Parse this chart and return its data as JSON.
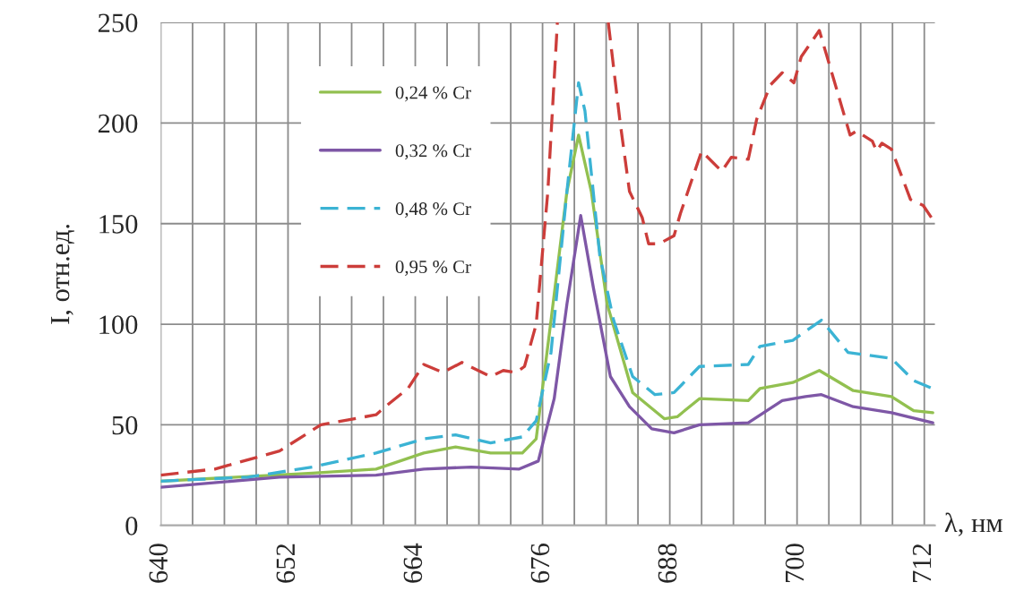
{
  "chart_data": {
    "type": "line",
    "xlabel": "λ, нм",
    "ylabel": "I, отн.ед.",
    "xlim": [
      640,
      713
    ],
    "ylim": [
      0,
      250
    ],
    "xticks": [
      640,
      {
        "value": 643,
        "label": null
      },
      {
        "value": 646,
        "label": null
      },
      {
        "value": 649,
        "label": null
      },
      652,
      {
        "value": 655,
        "label": null
      },
      {
        "value": 658,
        "label": null
      },
      {
        "value": 661,
        "label": null
      },
      664,
      {
        "value": 667,
        "label": null
      },
      {
        "value": 670,
        "label": null
      },
      {
        "value": 673,
        "label": null
      },
      676,
      {
        "value": 679,
        "label": null
      },
      {
        "value": 682,
        "label": null
      },
      {
        "value": 685,
        "label": null
      },
      688,
      {
        "value": 691,
        "label": null
      },
      {
        "value": 694,
        "label": null
      },
      {
        "value": 697,
        "label": null
      },
      700,
      {
        "value": 703,
        "label": null
      },
      {
        "value": 706,
        "label": null
      },
      {
        "value": 709,
        "label": null
      },
      712
    ],
    "yticks": [
      0,
      50,
      100,
      150,
      200,
      250
    ],
    "grid": true,
    "legend": "top left",
    "series": [
      {
        "name": "0,24 % Cr",
        "color": "#92c050",
        "line_style": "solid",
        "x": [
          640,
          654.3,
          660.3,
          664.8,
          667.8,
          671.1,
          674.1,
          675.4,
          676.8,
          678.3,
          679.4,
          680.6,
          682.1,
          684.5,
          687.5,
          688.7,
          690.8,
          695.4,
          696.5,
          699.6,
          702.1,
          705.3,
          708.9,
          711.0,
          712.8
        ],
        "values": [
          22,
          26,
          28,
          36,
          39,
          36,
          36,
          43,
          102,
          166,
          194,
          166,
          110,
          66,
          53,
          54,
          63,
          62,
          68,
          71,
          77,
          67,
          64,
          57,
          56
        ]
      },
      {
        "name": "0,32 % Cr",
        "color": "#7e57a6",
        "line_style": "solid",
        "x": [
          640,
          651.2,
          660.3,
          664.8,
          669.3,
          673.8,
          675.6,
          677.1,
          678.3,
          679.6,
          680.8,
          682.4,
          684.2,
          686.3,
          688.4,
          690.8,
          695.4,
          698.6,
          700.8,
          702.3,
          705.3,
          708.9,
          712.8
        ],
        "values": [
          19,
          24,
          25,
          28,
          29,
          28,
          32,
          63,
          110,
          154,
          118,
          74,
          59,
          48,
          46,
          50,
          51,
          62,
          64,
          65,
          59,
          56,
          51
        ]
      },
      {
        "name": "0,48 % Cr",
        "color": "#3bb3d4",
        "line_style": "dashed",
        "x": [
          640,
          648.2,
          654.3,
          660.3,
          664.8,
          667.8,
          671.1,
          674.1,
          675.4,
          676.8,
          678.3,
          679.4,
          680.0,
          681.4,
          682.7,
          684.5,
          686.6,
          688.4,
          690.8,
          695.4,
          696.5,
          699.6,
          702.3,
          704.8,
          708.9,
          711.0,
          712.8
        ],
        "values": [
          22,
          24,
          29,
          36,
          43,
          45,
          41,
          44,
          52,
          86,
          166,
          220,
          206,
          134,
          102,
          74,
          65,
          66,
          79,
          80,
          89,
          92,
          102,
          86,
          83,
          72,
          68
        ]
      },
      {
        "name": "0,95 % Cr",
        "color": "#cc3d3a",
        "line_style": "dashed",
        "x": [
          640,
          645.1,
          651.2,
          655.1,
          660.3,
          661.4,
          663.3,
          664.8,
          666.6,
          668.4,
          671.1,
          672.3,
          673.5,
          674.3,
          675.4,
          676.5,
          677.4,
          680.0,
          682.2,
          683.3,
          684.2,
          685.4,
          686.0,
          687.0,
          688.4,
          689.0,
          691.0,
          692.9,
          693.8,
          695.4,
          696.2,
          697.5,
          698.6,
          699.7,
          700.4,
          702.1,
          703.5,
          705.0,
          705.6,
          707.1,
          707.5,
          708.0,
          708.9,
          710.7,
          711.9,
          712.8
        ],
        "values": [
          25,
          28,
          37,
          50,
          55,
          60,
          68,
          80,
          76,
          81,
          74,
          77,
          76,
          79,
          100,
          166,
          250,
          null,
          250,
          201,
          166,
          153,
          140,
          140,
          144,
          155,
          186,
          176,
          183,
          182,
          202,
          219,
          225,
          220,
          233,
          246,
          221,
          194,
          196,
          191,
          186,
          190,
          187,
          162,
          159,
          152
        ]
      }
    ]
  }
}
